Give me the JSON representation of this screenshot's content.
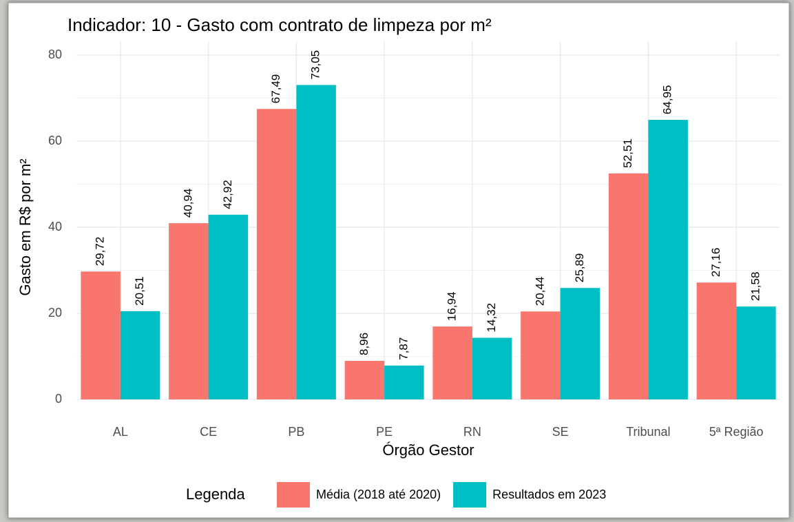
{
  "chart_data": {
    "type": "bar",
    "title": "Indicador: 10 - Gasto com contrato de limpeza por m²",
    "x_label": "Órgão Gestor",
    "y_label": "Gasto em R$ por m²",
    "categories": [
      "AL",
      "CE",
      "PB",
      "PE",
      "RN",
      "SE",
      "Tribunal",
      "5ª Região"
    ],
    "series": [
      {
        "name": "Média (2018 até 2020)",
        "color": "#F8766D",
        "values": [
          29.72,
          40.94,
          67.49,
          8.96,
          16.94,
          20.44,
          52.51,
          27.16
        ],
        "value_labels": [
          "29,72",
          "40,94",
          "67,49",
          "8,96",
          "16,94",
          "20,44",
          "52,51",
          "27,16"
        ]
      },
      {
        "name": "Resultados em 2023",
        "color": "#00BFC4",
        "values": [
          20.51,
          42.92,
          73.05,
          7.87,
          14.32,
          25.89,
          64.95,
          21.58
        ],
        "value_labels": [
          "20,51",
          "42,92",
          "73,05",
          "7,87",
          "14,32",
          "25,89",
          "64,95",
          "21,58"
        ]
      }
    ],
    "legend_title": "Legenda",
    "legend_position": "bottom",
    "ylim": [
      0,
      80
    ],
    "yticks": [
      0,
      20,
      40,
      60,
      80
    ],
    "grid": true
  }
}
